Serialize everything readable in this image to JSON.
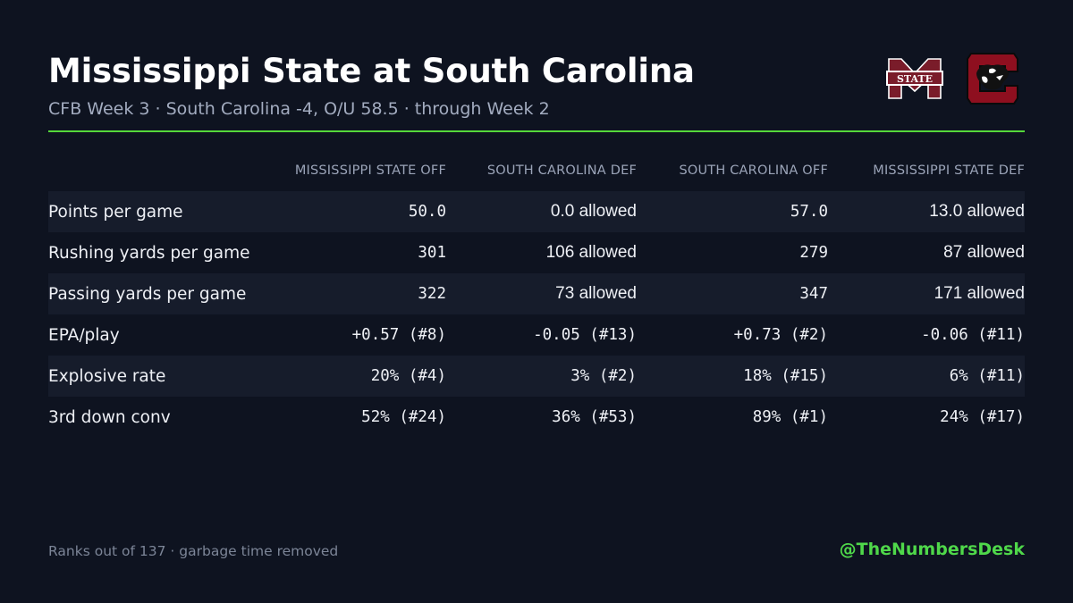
{
  "header": {
    "title": "Mississippi State at South Carolina",
    "subtitle": "CFB Week 3 · South Carolina -4, O/U 58.5 · through Week 2"
  },
  "colors": {
    "accent_rule": "#55d83a",
    "handle": "#4fd84a",
    "msu_maroon": "#7a1c2a",
    "sc_garnet": "#8e0f1f"
  },
  "logos": {
    "msu": {
      "icon": "mississippi-state-logo",
      "text": "STATE"
    },
    "sc": {
      "icon": "south-carolina-gamecocks-logo"
    }
  },
  "table": {
    "columns": [
      "",
      "MISSISSIPPI STATE OFF",
      "SOUTH CAROLINA DEF",
      "SOUTH CAROLINA OFF",
      "MISSISSIPPI STATE DEF"
    ],
    "rows": [
      {
        "label": "Points per game",
        "cells": [
          "50.0",
          "0.0 allowed",
          "57.0",
          "13.0 allowed"
        ]
      },
      {
        "label": "Rushing yards per game",
        "cells": [
          "301",
          "106 allowed",
          "279",
          "87 allowed"
        ]
      },
      {
        "label": "Passing yards per game",
        "cells": [
          "322",
          "73 allowed",
          "347",
          "171 allowed"
        ]
      },
      {
        "label": "EPA/play",
        "cells": [
          "+0.57 (#8)",
          "-0.05 (#13)",
          "+0.73 (#2)",
          "-0.06 (#11)"
        ]
      },
      {
        "label": "Explosive rate",
        "cells": [
          "20% (#4)",
          "3% (#2)",
          "18% (#15)",
          "6% (#11)"
        ]
      },
      {
        "label": "3rd down conv",
        "cells": [
          "52% (#24)",
          "36% (#53)",
          "89% (#1)",
          "24% (#17)"
        ]
      }
    ]
  },
  "footer": {
    "footnote": "Ranks out of 137 · garbage time removed",
    "handle": "@TheNumbersDesk"
  }
}
